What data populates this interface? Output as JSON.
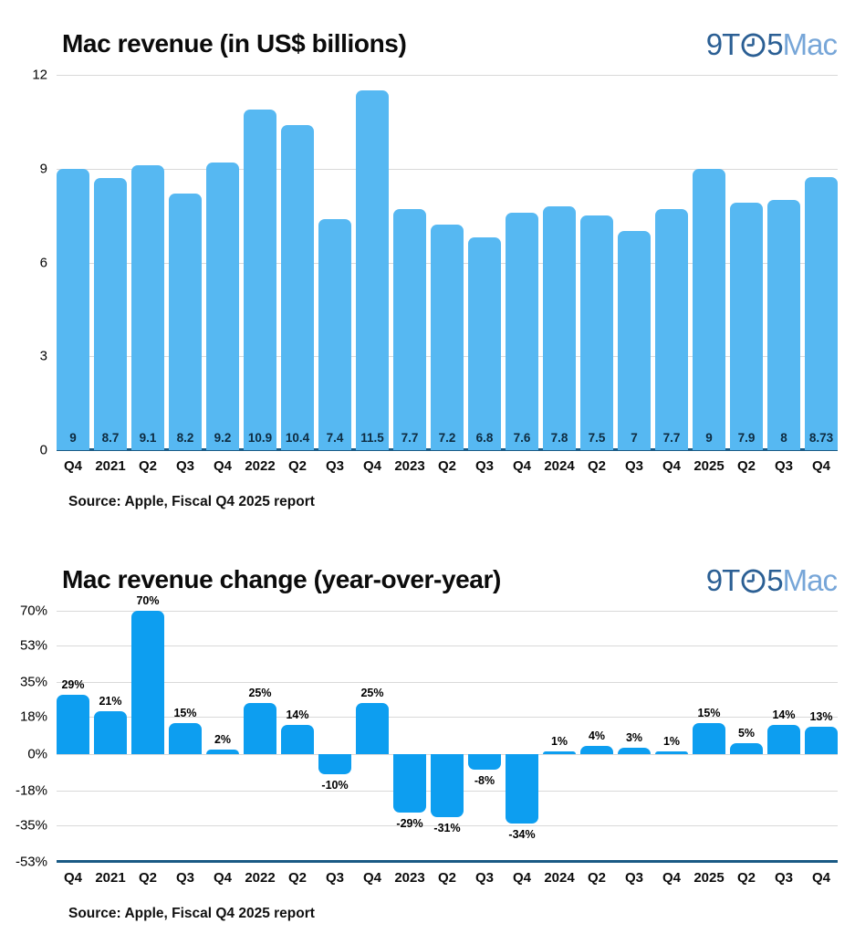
{
  "logo": {
    "part1": "9T",
    "part2": "5",
    "part3": "Mac"
  },
  "colors": {
    "revenue_bar": "#56b8f2",
    "change_bar": "#0d9ef0",
    "axis_line": "#1a5a85",
    "gridline": "#d9d9d9",
    "logo_dark": "#2b5f94",
    "logo_light": "#77a6d8"
  },
  "chart_data": [
    {
      "type": "bar",
      "title": "Mac revenue (in US$ billions)",
      "source": "Source: Apple, Fiscal Q4 2025 report",
      "xlabel": "",
      "ylabel": "",
      "categories": [
        "Q4",
        "2021",
        "Q2",
        "Q3",
        "Q4",
        "2022",
        "Q2",
        "Q3",
        "Q4",
        "2023",
        "Q2",
        "Q3",
        "Q4",
        "2024",
        "Q2",
        "Q3",
        "Q4",
        "2025",
        "Q2",
        "Q3",
        "Q4"
      ],
      "values": [
        9,
        8.7,
        9.1,
        8.2,
        9.2,
        10.9,
        10.4,
        7.4,
        11.5,
        7.7,
        7.2,
        6.8,
        7.6,
        7.8,
        7.5,
        7,
        7.7,
        9,
        7.9,
        8,
        8.73
      ],
      "value_labels": [
        "9",
        "8.7",
        "9.1",
        "8.2",
        "9.2",
        "10.9",
        "10.4",
        "7.4",
        "11.5",
        "7.7",
        "7.2",
        "6.8",
        "7.6",
        "7.8",
        "7.5",
        "7",
        "7.7",
        "9",
        "7.9",
        "8",
        "8.73"
      ],
      "yticks": [
        12,
        9,
        6,
        3,
        0
      ],
      "ytick_labels": [
        "12",
        "9",
        "6",
        "3",
        "0"
      ],
      "ylim": [
        0,
        12
      ],
      "grid": true,
      "legend": false,
      "bar_color": "#56b8f2",
      "label_position": "inside-bottom",
      "label_color": "#0e2b40"
    },
    {
      "type": "bar",
      "title": "Mac revenue change (year-over-year)",
      "source": "Source: Apple, Fiscal Q4 2025 report",
      "xlabel": "",
      "ylabel": "",
      "categories": [
        "Q4",
        "2021",
        "Q2",
        "Q3",
        "Q4",
        "2022",
        "Q2",
        "Q3",
        "Q4",
        "2023",
        "Q2",
        "Q3",
        "Q4",
        "2024",
        "Q2",
        "Q3",
        "Q4",
        "2025",
        "Q2",
        "Q3",
        "Q4"
      ],
      "values": [
        29,
        21,
        70,
        15,
        2,
        25,
        14,
        -10,
        25,
        -29,
        -31,
        -8,
        -34,
        1,
        4,
        3,
        1,
        15,
        5,
        14,
        13
      ],
      "value_labels": [
        "29%",
        "21%",
        "70%",
        "15%",
        "2%",
        "25%",
        "14%",
        "-10%",
        "25%",
        "-29%",
        "-31%",
        "-8%",
        "-34%",
        "1%",
        "4%",
        "3%",
        "1%",
        "15%",
        "5%",
        "14%",
        "13%"
      ],
      "yticks": [
        70,
        53,
        35,
        18,
        0,
        -18,
        -35,
        -53
      ],
      "ytick_labels": [
        "70%",
        "53%",
        "35%",
        "18%",
        "0%",
        "-18%",
        "-35%",
        "-53%"
      ],
      "ylim": [
        -53,
        70
      ],
      "grid": true,
      "legend": false,
      "bar_color": "#0d9ef0",
      "label_position": "outside-end",
      "label_color": "#000000"
    }
  ]
}
